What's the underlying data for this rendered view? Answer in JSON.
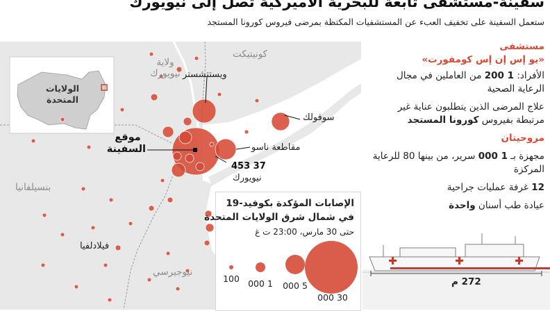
{
  "header": {
    "title": "سفينة-مستشفى تابعة للبحرية الأميركية تصل إلى نيويورك",
    "subtitle": "ستعمل السفينة على تخفيف العبء عن المستشفيات المكتظة بمرضى فيروس كورونا المستجد"
  },
  "map": {
    "inset_label_line1": "الولايات",
    "inset_label_line2": "المتحدة",
    "states": {
      "connecticut": "كونيتيكت",
      "ny_state_line1": "ولاية",
      "ny_state_line2": "نيويورك",
      "pennsylvania": "بنسيلفانيا",
      "new_jersey": "نيوجيرسي"
    },
    "places": {
      "westchester": "ويستتشستر",
      "suffolk": "سوفولك",
      "nassau": "مقاطعة ناسو",
      "philadelphia": "فيلادلفيا",
      "new_york": "نيويورك"
    },
    "ship_location_line1": "موقع",
    "ship_location_line2": "السفينة",
    "nyc_cases": "37 453"
  },
  "panel": {
    "heading_line1": "مستشفى",
    "heading_line2": "«يو إس إن إس كومفورت»",
    "crew_prefix": "الأفراد: ",
    "crew_value": "1 200",
    "crew_suffix": " من العاملين في مجال الرعاية الصحية",
    "treat_text": "علاج المرضى الذين يتطلبون عناية غير مرتبطة بفيروس ",
    "treat_bold": "كورونا المستجد",
    "equipped_heading": "مروحيتان",
    "beds_prefix": "مجهزة بـ ",
    "beds_value": "1 000",
    "beds_suffix": " سرير، من بينها 80 للرعاية المركزة",
    "or_value": "12",
    "or_suffix": " غرفة عمليات جراحية",
    "dental_prefix": "عيادة طب أسنان ",
    "dental_bold": "واحدة"
  },
  "legend": {
    "title_line1": "الإصابات المؤكدة بكوفيد-19",
    "title_line2": "في شمال شرق الولايات المتحدة",
    "date": "حتى 30 مارس، 23:00 ت غ",
    "sizes": [
      "100",
      "1 000",
      "5 000",
      "30 000"
    ]
  },
  "ship": {
    "length": "272 م"
  },
  "colors": {
    "bubble": "#d64a36",
    "land": "#e8e8e8",
    "water": "#ffffff",
    "border": "#9a9a9a"
  },
  "icons": {
    "ship_marker": "square-marker-icon",
    "ship_image": "hospital-ship-icon"
  }
}
